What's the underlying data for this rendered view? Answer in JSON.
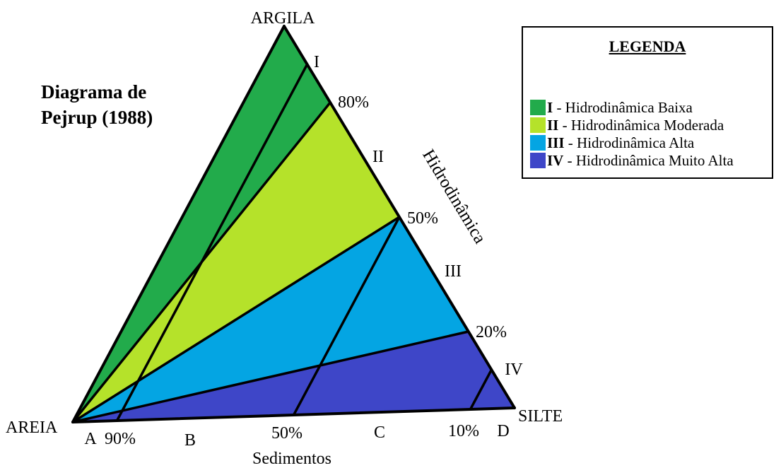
{
  "title_line1": "Diagrama de",
  "title_line2": "Pejrup (1988)",
  "vertices": {
    "top": "ARGILA",
    "left": "AREIA",
    "right": "SILTE"
  },
  "right_axis": {
    "label": "Hidrodinâmica",
    "ticks": [
      "80%",
      "50%",
      "20%"
    ],
    "zones": [
      "I",
      "II",
      "III",
      "IV"
    ]
  },
  "bottom_axis": {
    "label": "Sedimentos",
    "ticks": [
      "90%",
      "50%",
      "10%"
    ],
    "zones": [
      "A",
      "B",
      "C",
      "D"
    ]
  },
  "legend": {
    "title": "LEGENDA",
    "items": [
      {
        "num": "I",
        "text": " - Hidrodinâmica Baixa",
        "color": "#22ab4b"
      },
      {
        "num": "II",
        "text": " - Hidrodinâmica Moderada",
        "color": "#b5e22a"
      },
      {
        "num": "III",
        "text": " - Hidrodinâmica Alta",
        "color": "#04a5e3"
      },
      {
        "num": "IV",
        "text": " - Hidrodinâmica Muito Alta",
        "color": "#3e46c8"
      }
    ]
  }
}
